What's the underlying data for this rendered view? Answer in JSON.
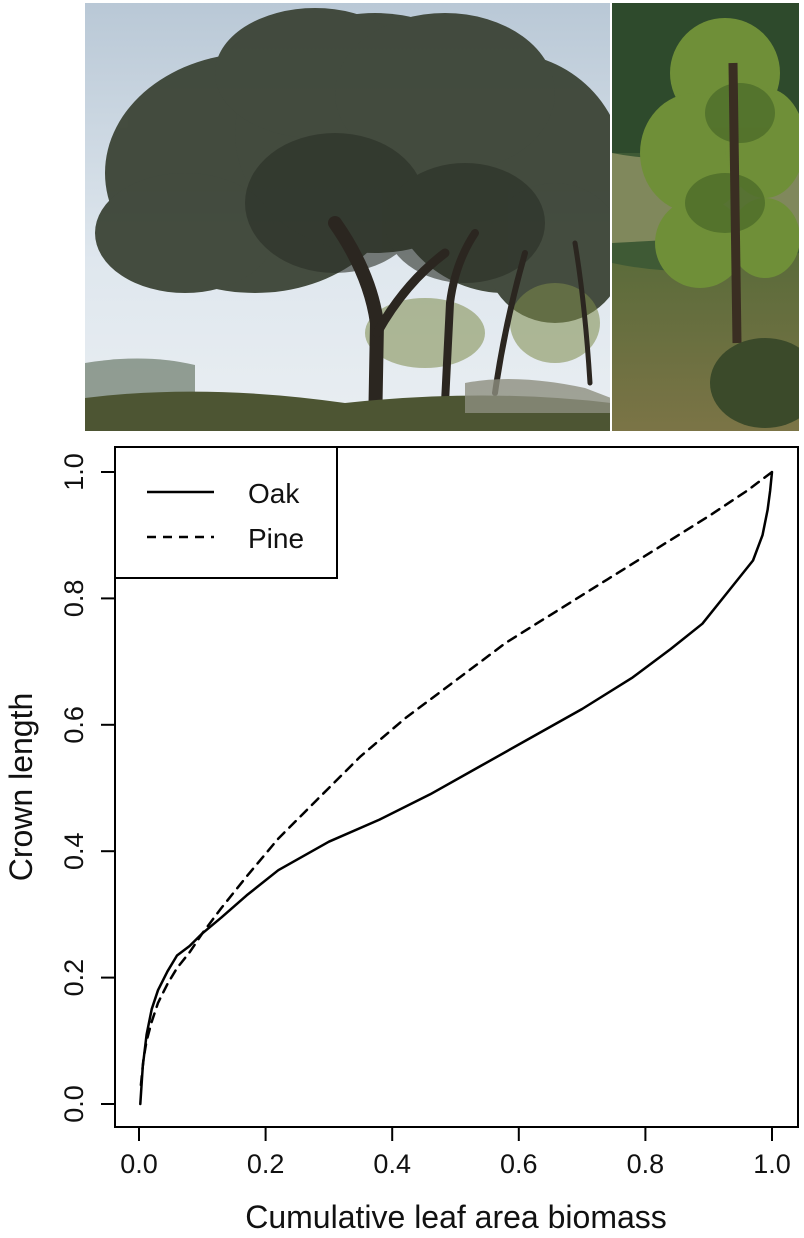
{
  "photos": [
    {
      "subject": "oak-tree"
    },
    {
      "subject": "pine-tree"
    }
  ],
  "chart_data": {
    "type": "line",
    "xlabel": "Cumulative leaf area biomass",
    "ylabel": "Crown length",
    "xlim": [
      0.0,
      1.0
    ],
    "ylim": [
      0.0,
      1.0
    ],
    "xticks": [
      "0.0",
      "0.2",
      "0.4",
      "0.6",
      "0.8",
      "1.0"
    ],
    "yticks": [
      "0.0",
      "0.2",
      "0.4",
      "0.6",
      "0.8",
      "1.0"
    ],
    "grid": false,
    "legend": {
      "position": "top-left",
      "entries": [
        "Oak",
        "Pine"
      ]
    },
    "series": [
      {
        "name": "Oak",
        "style": "solid",
        "color": "#000000",
        "x": [
          0.002,
          0.006,
          0.012,
          0.02,
          0.03,
          0.045,
          0.06,
          0.08,
          0.1,
          0.13,
          0.17,
          0.22,
          0.3,
          0.38,
          0.46,
          0.54,
          0.62,
          0.7,
          0.78,
          0.84,
          0.89,
          0.93,
          0.97,
          0.985,
          0.993,
          0.997,
          1.0
        ],
        "y": [
          0.0,
          0.06,
          0.11,
          0.15,
          0.18,
          0.21,
          0.235,
          0.25,
          0.27,
          0.295,
          0.33,
          0.37,
          0.415,
          0.45,
          0.49,
          0.535,
          0.58,
          0.625,
          0.675,
          0.72,
          0.76,
          0.81,
          0.86,
          0.9,
          0.94,
          0.97,
          1.0
        ]
      },
      {
        "name": "Pine",
        "style": "dashed",
        "color": "#000000",
        "x": [
          0.003,
          0.007,
          0.012,
          0.02,
          0.03,
          0.045,
          0.06,
          0.08,
          0.1,
          0.13,
          0.17,
          0.22,
          0.28,
          0.35,
          0.42,
          0.5,
          0.58,
          0.66,
          0.74,
          0.82,
          0.9,
          0.96,
          1.0
        ],
        "y": [
          0.03,
          0.07,
          0.1,
          0.13,
          0.16,
          0.19,
          0.215,
          0.24,
          0.27,
          0.31,
          0.36,
          0.42,
          0.48,
          0.55,
          0.61,
          0.67,
          0.73,
          0.78,
          0.83,
          0.88,
          0.93,
          0.97,
          1.0
        ]
      }
    ]
  }
}
